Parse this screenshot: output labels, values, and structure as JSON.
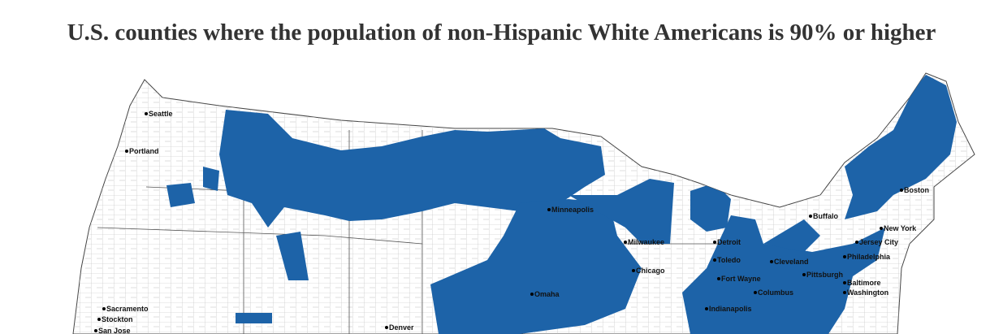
{
  "title": "U.S. counties where the population of non-Hispanic White Americans is 90% or higher",
  "cities": [
    "Seattle",
    "Portland",
    "Sacramento",
    "Stockton",
    "San Jose",
    "Denver",
    "Minneapolis",
    "Milwaukee",
    "Chicago",
    "Detroit",
    "Toledo",
    "Fort Wayne",
    "Indianapolis",
    "Columbus",
    "Cleveland",
    "Pittsburgh",
    "Baltimore",
    "Washington",
    "Philadelphia",
    "New York",
    "Jersey City",
    "Buffalo",
    "Boston",
    "Omaha"
  ]
}
